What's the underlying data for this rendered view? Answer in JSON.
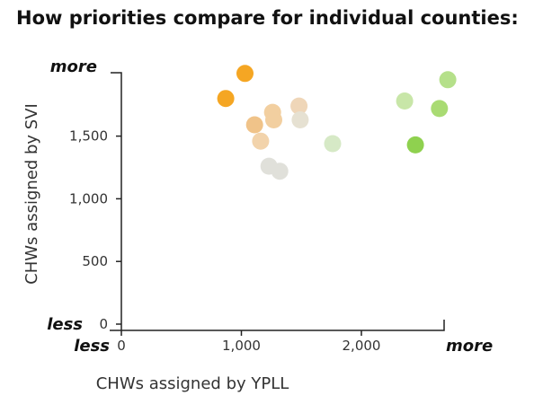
{
  "title": "How priorities compare for individual counties:",
  "chart_data": {
    "type": "scatter",
    "title": "How priorities compare for individual counties:",
    "xlabel": "CHWs assigned by YPLL",
    "ylabel": "CHWs assigned by SVI",
    "xlim": [
      0,
      2700
    ],
    "ylim": [
      0,
      2050
    ],
    "x_ticks": [
      0,
      1000,
      2000
    ],
    "x_tick_labels": [
      "0",
      "1,000",
      "2,000"
    ],
    "y_ticks": [
      0,
      500,
      1000,
      1500
    ],
    "y_tick_labels": [
      "0",
      "500",
      "1,000",
      "1,500"
    ],
    "x_end_labels": {
      "low": "less",
      "high": "more"
    },
    "y_end_labels": {
      "low": "less",
      "high": "more"
    },
    "grid": false,
    "points": [
      {
        "x": 1030,
        "y": 2000,
        "color": "#f5a623"
      },
      {
        "x": 870,
        "y": 1800,
        "color": "#f5a623"
      },
      {
        "x": 1110,
        "y": 1590,
        "color": "#f0c389"
      },
      {
        "x": 1260,
        "y": 1690,
        "color": "#f2cfa0"
      },
      {
        "x": 1270,
        "y": 1630,
        "color": "#f2cfa0"
      },
      {
        "x": 1160,
        "y": 1460,
        "color": "#f2d3ab"
      },
      {
        "x": 1480,
        "y": 1740,
        "color": "#efd6b8"
      },
      {
        "x": 1490,
        "y": 1630,
        "color": "#e6e1d2"
      },
      {
        "x": 1230,
        "y": 1260,
        "color": "#e0e0da"
      },
      {
        "x": 1320,
        "y": 1220,
        "color": "#e0e0da"
      },
      {
        "x": 1760,
        "y": 1440,
        "color": "#d6e9c6"
      },
      {
        "x": 2360,
        "y": 1780,
        "color": "#c8e6a8"
      },
      {
        "x": 2720,
        "y": 1950,
        "color": "#b5e08a"
      },
      {
        "x": 2650,
        "y": 1720,
        "color": "#a9db73"
      },
      {
        "x": 2450,
        "y": 1430,
        "color": "#8fd14f"
      }
    ]
  }
}
